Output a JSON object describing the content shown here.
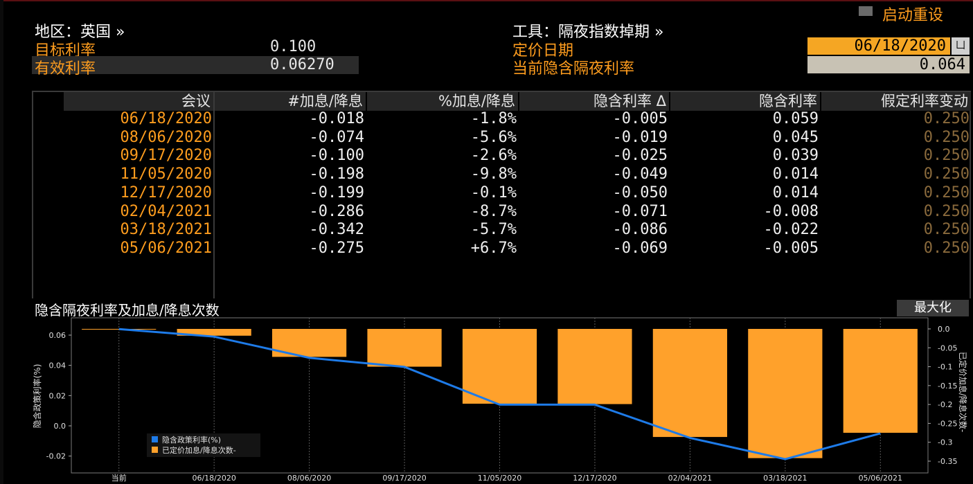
{
  "header": {
    "region_label": "地区：英国 »",
    "target_rate_label": "目标利率",
    "target_rate_value": "0.100",
    "effective_rate_label": "有效利率",
    "effective_rate_value": "0.06270",
    "instrument_label": "工具：隔夜指数掉期 »",
    "pricing_date_label": "定价日期",
    "pricing_date_value": "06/18/2020",
    "implied_overnight_label": "当前隐含隔夜利率",
    "implied_overnight_value": "0.064",
    "restart_label": "启动重设",
    "calendar_icon_glyph": "凵"
  },
  "table": {
    "columns": [
      "会议",
      "#加息/降息",
      "%加息/降息",
      "隐含利率 Δ",
      "隐含利率",
      "假定利率变动"
    ],
    "rows": [
      [
        "06/18/2020",
        "-0.018",
        "-1.8%",
        "-0.005",
        "0.059",
        "0.250"
      ],
      [
        "08/06/2020",
        "-0.074",
        "-5.6%",
        "-0.019",
        "0.045",
        "0.250"
      ],
      [
        "09/17/2020",
        "-0.100",
        "-2.6%",
        "-0.025",
        "0.039",
        "0.250"
      ],
      [
        "11/05/2020",
        "-0.198",
        "-9.8%",
        "-0.049",
        "0.014",
        "0.250"
      ],
      [
        "12/17/2020",
        "-0.199",
        "-0.1%",
        "-0.050",
        "0.014",
        "0.250"
      ],
      [
        "02/04/2021",
        "-0.286",
        "-8.7%",
        "-0.071",
        "-0.008",
        "0.250"
      ],
      [
        "03/18/2021",
        "-0.342",
        "-5.7%",
        "-0.086",
        "-0.022",
        "0.250"
      ],
      [
        "05/06/2021",
        "-0.275",
        "+6.7%",
        "-0.069",
        "-0.005",
        "0.250"
      ]
    ]
  },
  "chart_section": {
    "title": "隐含隔夜利率及加息/降息次数",
    "maximize_label": "最大化"
  },
  "chart_data": {
    "type": "bar",
    "categories": [
      "当前",
      "06/18/2020",
      "08/06/2020",
      "09/17/2020",
      "11/05/2020",
      "12/17/2020",
      "02/04/2021",
      "03/18/2021",
      "05/06/2021"
    ],
    "series": [
      {
        "name": "隐含政策利率(%)",
        "type": "line",
        "axis": "left",
        "color": "#1e7be8",
        "values": [
          0.064,
          0.059,
          0.045,
          0.039,
          0.014,
          0.014,
          -0.008,
          -0.022,
          -0.005
        ]
      },
      {
        "name": "已定价加息/降息次数-",
        "type": "bar",
        "axis": "right",
        "color": "#ffa12b",
        "values": [
          0.0,
          -0.018,
          -0.074,
          -0.1,
          -0.198,
          -0.199,
          -0.286,
          -0.342,
          -0.275
        ]
      }
    ],
    "ylabel": "隐含政策利率(%)",
    "y2label": "已定价加息/降息次数-",
    "ylim": [
      -0.025,
      0.07
    ],
    "y2lim": [
      -0.35,
      0.0
    ],
    "yticks": [
      "0.06",
      "0.04",
      "0.02",
      "0.0",
      "-0.02"
    ],
    "y2ticks": [
      "0.0",
      "-0.05",
      "-0.1",
      "-0.15",
      "-0.2",
      "-0.25",
      "-0.3",
      "-0.35"
    ],
    "legend_position": "bottom-left",
    "grid": "vertical"
  }
}
